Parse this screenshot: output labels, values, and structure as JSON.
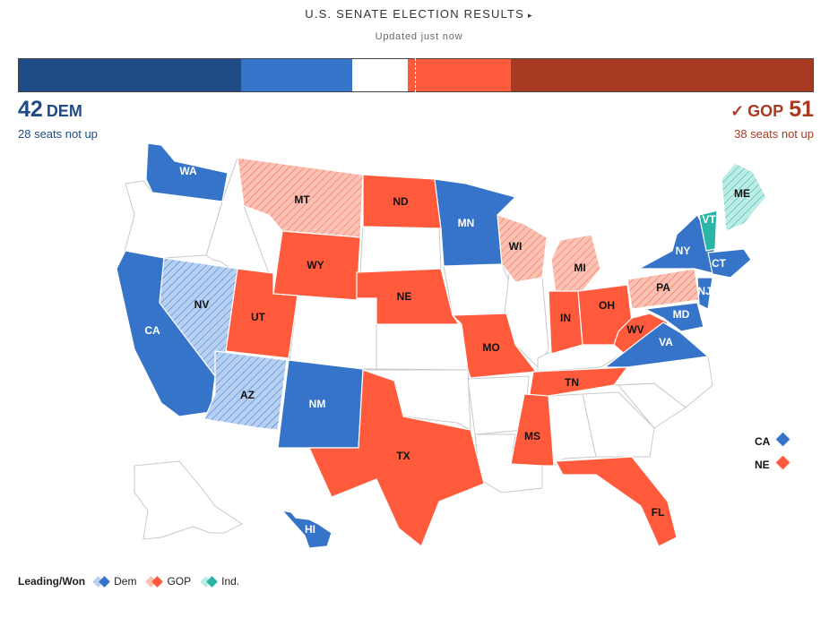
{
  "header": {
    "title": "U.S. SENATE ELECTION RESULTS",
    "arrow": "▸",
    "updated": "Updated just now"
  },
  "seat_bar": {
    "total": 100,
    "segments": [
      {
        "name": "dem-not-up",
        "seats": 28,
        "color": "#1f4c86"
      },
      {
        "name": "dem-won",
        "seats": 14,
        "color": "#3574c8"
      },
      {
        "name": "undecided",
        "seats": 7,
        "color": "#ffffff"
      },
      {
        "name": "gop-won",
        "seats": 13,
        "color": "#ff5a3c"
      },
      {
        "name": "gop-not-up",
        "seats": 38,
        "color": "#a83a22"
      }
    ]
  },
  "dem": {
    "count": "42",
    "label": "DEM",
    "sub": "28 seats not up"
  },
  "gop": {
    "check": "✓",
    "count": "51",
    "label": "GOP",
    "sub": "38 seats not up"
  },
  "states": [
    {
      "abbr": "WA",
      "status": "dem-won"
    },
    {
      "abbr": "CA",
      "status": "dem-won"
    },
    {
      "abbr": "NV",
      "status": "dem-leading"
    },
    {
      "abbr": "AZ",
      "status": "dem-leading"
    },
    {
      "abbr": "MT",
      "status": "gop-leading"
    },
    {
      "abbr": "ND",
      "status": "gop-won"
    },
    {
      "abbr": "WY",
      "status": "gop-won"
    },
    {
      "abbr": "UT",
      "status": "gop-won"
    },
    {
      "abbr": "NE",
      "status": "gop-won"
    },
    {
      "abbr": "NM",
      "status": "dem-won"
    },
    {
      "abbr": "TX",
      "status": "gop-won"
    },
    {
      "abbr": "MN",
      "status": "dem-won"
    },
    {
      "abbr": "WI",
      "status": "gop-leading"
    },
    {
      "abbr": "MI",
      "status": "gop-leading"
    },
    {
      "abbr": "MO",
      "status": "gop-won"
    },
    {
      "abbr": "IN",
      "status": "gop-won"
    },
    {
      "abbr": "OH",
      "status": "gop-won"
    },
    {
      "abbr": "WV",
      "status": "gop-won"
    },
    {
      "abbr": "PA",
      "status": "gop-leading"
    },
    {
      "abbr": "NY",
      "status": "dem-won"
    },
    {
      "abbr": "VT",
      "status": "ind-won"
    },
    {
      "abbr": "ME",
      "status": "ind-leading"
    },
    {
      "abbr": "CT",
      "status": "dem-won"
    },
    {
      "abbr": "NJ",
      "status": "dem-won"
    },
    {
      "abbr": "MD",
      "status": "dem-won"
    },
    {
      "abbr": "VA",
      "status": "dem-won"
    },
    {
      "abbr": "TN",
      "status": "gop-won"
    },
    {
      "abbr": "MS",
      "status": "gop-won"
    },
    {
      "abbr": "FL",
      "status": "gop-won"
    },
    {
      "abbr": "HI",
      "status": "dem-won"
    }
  ],
  "district_states": [
    {
      "abbr": "CA",
      "status": "dem-won"
    },
    {
      "abbr": "NE",
      "status": "gop-won"
    }
  ],
  "colors": {
    "dem-won": "#3574c8",
    "gop-won": "#ff5a3c",
    "ind-won": "#2bb5a6",
    "dem-leading": "#b7d0f2",
    "gop-leading": "#f9c2b5",
    "ind-leading": "#bdece6",
    "no-race": "#ffffff"
  },
  "legend": {
    "title": "Leading/Won",
    "items": [
      {
        "label": "Dem",
        "lead": "#b7d0f2",
        "won": "#3574c8"
      },
      {
        "label": "GOP",
        "lead": "#f9c2b5",
        "won": "#ff5a3c"
      },
      {
        "label": "Ind.",
        "lead": "#bdece6",
        "won": "#2bb5a6"
      }
    ]
  }
}
